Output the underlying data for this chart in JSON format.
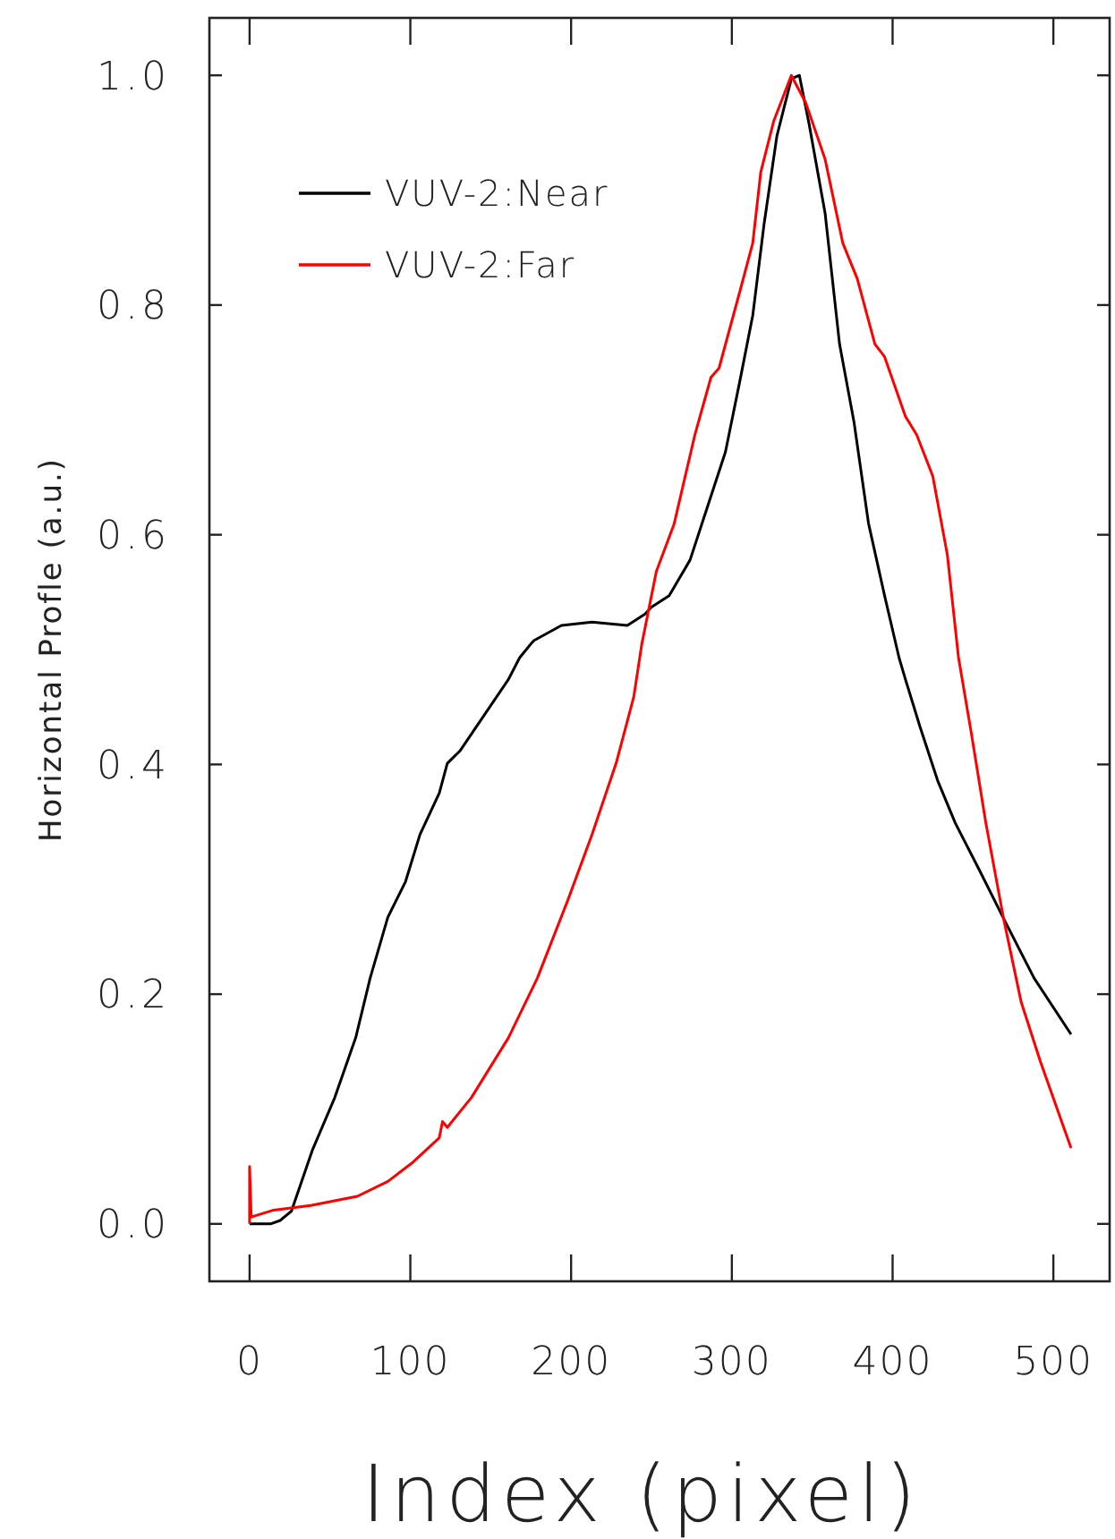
{
  "chart_data": {
    "type": "line",
    "xlabel": "Index (pixel)",
    "ylabel": "Horizontal Profle (a.u.)",
    "xlim": [
      -25,
      535
    ],
    "ylim": [
      -0.05,
      1.05
    ],
    "xticks": [
      0,
      100,
      200,
      300,
      400,
      500
    ],
    "yticks": [
      {
        "value": 0,
        "label": "0.0"
      },
      {
        "value": 0.2,
        "label": "0.2"
      },
      {
        "value": 0.4,
        "label": "0.4"
      },
      {
        "value": 0.6,
        "label": "0.6"
      },
      {
        "value": 0.8,
        "label": "0.8"
      },
      {
        "value": 1,
        "label": "1.0"
      }
    ],
    "grid": false,
    "legend": "top left",
    "line_style": "solid",
    "series": [
      {
        "name": "VUV-2:Near",
        "color": "#000000",
        "x": [
          0,
          13,
          19,
          26,
          39,
          53,
          66,
          75,
          86,
          97,
          106,
          118,
          123,
          131,
          146,
          161,
          168,
          175,
          177,
          194,
          213,
          235,
          246,
          250,
          261,
          274,
          285,
          296,
          305,
          313,
          320,
          328,
          337,
          342,
          348,
          358,
          367,
          376,
          385,
          395,
          404,
          408,
          417,
          428,
          439,
          454,
          469,
          488,
          511
        ],
        "values": [
          0,
          0,
          0.003,
          0.011,
          0.064,
          0.11,
          0.162,
          0.214,
          0.267,
          0.298,
          0.339,
          0.375,
          0.401,
          0.412,
          0.443,
          0.474,
          0.493,
          0.505,
          0.508,
          0.521,
          0.524,
          0.521,
          0.531,
          0.537,
          0.547,
          0.578,
          0.625,
          0.672,
          0.734,
          0.791,
          0.87,
          0.947,
          0.997,
          1,
          0.958,
          0.88,
          0.766,
          0.698,
          0.61,
          0.547,
          0.493,
          0.474,
          0.433,
          0.386,
          0.349,
          0.308,
          0.266,
          0.214,
          0.165
        ]
      },
      {
        "name": "VUV-2:Far",
        "color": "#ff0000",
        "x": [
          0,
          0,
          1,
          15,
          38,
          67,
          86,
          101,
          118,
          120,
          123,
          138,
          161,
          179,
          198,
          213,
          228,
          239,
          244,
          253,
          264,
          277,
          287,
          292,
          305,
          313,
          318,
          326,
          337,
          346,
          358,
          369,
          378,
          389,
          395,
          408,
          415,
          425,
          434,
          441,
          449,
          458,
          469,
          480,
          492,
          511
        ],
        "values": [
          0,
          0.05,
          0.006,
          0.012,
          0.016,
          0.024,
          0.037,
          0.053,
          0.075,
          0.089,
          0.084,
          0.11,
          0.162,
          0.214,
          0.282,
          0.339,
          0.401,
          0.459,
          0.505,
          0.568,
          0.609,
          0.687,
          0.737,
          0.745,
          0.812,
          0.854,
          0.916,
          0.96,
          1,
          0.976,
          0.927,
          0.854,
          0.823,
          0.766,
          0.755,
          0.703,
          0.687,
          0.651,
          0.583,
          0.493,
          0.427,
          0.349,
          0.266,
          0.193,
          0.141,
          0.066
        ]
      }
    ]
  }
}
